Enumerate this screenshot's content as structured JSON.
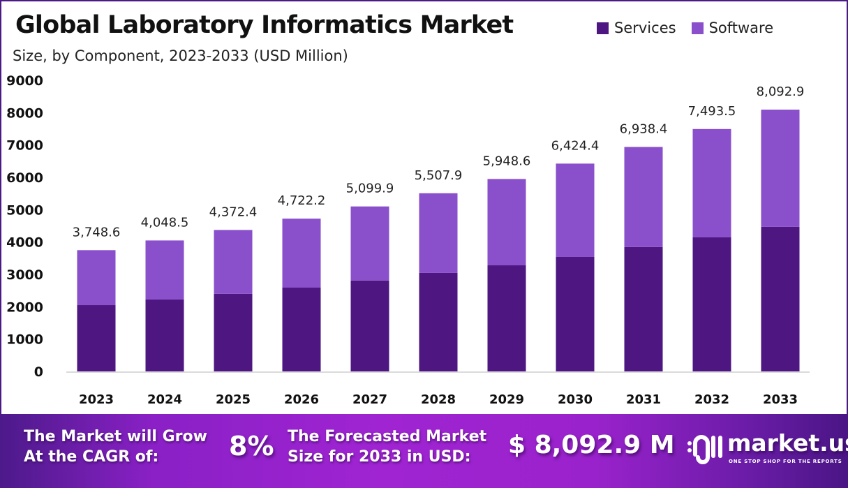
{
  "chart_data": {
    "type": "bar",
    "stacked": true,
    "title": "Global Laboratory Informatics Market",
    "subtitle": "Size, by Component, 2023-2033 (USD Million)",
    "xlabel": "",
    "ylabel": "",
    "ylim": [
      0,
      9000
    ],
    "yticks": [
      0,
      1000,
      2000,
      3000,
      4000,
      5000,
      6000,
      7000,
      8000,
      9000
    ],
    "grid": false,
    "legend_position": "top-right",
    "categories": [
      "2023",
      "2024",
      "2025",
      "2026",
      "2027",
      "2028",
      "2029",
      "2030",
      "2031",
      "2032",
      "2033"
    ],
    "series": [
      {
        "name": "Services",
        "color": "#4e1681",
        "values": [
          2050,
          2225,
          2400,
          2590,
          2810,
          3045,
          3280,
          3540,
          3845,
          4145,
          4470
        ]
      },
      {
        "name": "Software",
        "color": "#8a4fcb",
        "values": [
          1698.6,
          1823.5,
          1972.4,
          2132.2,
          2289.9,
          2462.9,
          2668.6,
          2884.4,
          3093.4,
          3348.5,
          3622.9
        ]
      }
    ],
    "totals": [
      3748.6,
      4048.5,
      4372.4,
      4722.2,
      5099.9,
      5507.9,
      5948.6,
      6424.4,
      6938.4,
      7493.5,
      8092.9
    ],
    "total_labels": [
      "3,748.6",
      "4,048.5",
      "4,372.4",
      "4,722.2",
      "5,099.9",
      "5,507.9",
      "5,948.6",
      "6,424.4",
      "6,938.4",
      "7,493.5",
      "8,092.9"
    ]
  },
  "legend": {
    "items": [
      {
        "label": "Services",
        "color": "#4e1681"
      },
      {
        "label": "Software",
        "color": "#8a4fcb"
      }
    ]
  },
  "banner": {
    "cagr_text_line1": "The Market will Grow",
    "cagr_text_line2": "At the CAGR of:",
    "cagr_value": "8%",
    "forecast_text_line1": "The Forecasted Market",
    "forecast_text_line2": "Size for 2033 in USD:",
    "forecast_value": "$ 8,092.9 M",
    "brand_name": "market.us",
    "brand_tagline": "ONE STOP SHOP FOR THE REPORTS"
  }
}
